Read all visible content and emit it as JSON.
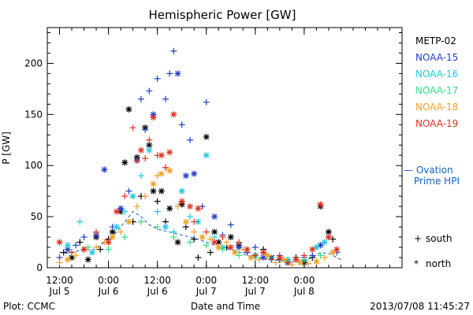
{
  "chart_data": {
    "type": "scatter",
    "title": "Hemispheric Power [GW]",
    "ylabel": "P [GW]",
    "xlabel": "Date and Time",
    "ylim": [
      0,
      235
    ],
    "xlim_hours": [
      -3,
      84
    ],
    "yticks": [
      0,
      50,
      100,
      150,
      200
    ],
    "xticks": [
      {
        "h": 0,
        "top": "12:00",
        "bottom": "Jul 5"
      },
      {
        "h": 12,
        "top": "0:00",
        "bottom": "Jul 6"
      },
      {
        "h": 24,
        "top": "12:00",
        "bottom": "Jul 6"
      },
      {
        "h": 36,
        "top": "0:00",
        "bottom": "Jul 7"
      },
      {
        "h": 48,
        "top": "12:00",
        "bottom": "Jul 7"
      },
      {
        "h": 60,
        "top": "0:00",
        "bottom": "Jul 8"
      }
    ],
    "x_unit": "hours since 2013-07-05 12:00 UT",
    "grid": false,
    "legend_position": "right",
    "series": [
      {
        "name": "METP-02",
        "color": "#000000",
        "points": [
          [
            1,
            15,
            "+"
          ],
          [
            3,
            10,
            "*"
          ],
          [
            5,
            25,
            "+"
          ],
          [
            7,
            8,
            "*"
          ],
          [
            9,
            30,
            "*"
          ],
          [
            10,
            18,
            "+"
          ],
          [
            12,
            28,
            "+"
          ],
          [
            13,
            35,
            "*"
          ],
          [
            15,
            55,
            "*"
          ],
          [
            16,
            103,
            "*"
          ],
          [
            17,
            155,
            "*"
          ],
          [
            18,
            45,
            "+"
          ],
          [
            19,
            108,
            "*"
          ],
          [
            20,
            70,
            "+"
          ],
          [
            21,
            137,
            "*"
          ],
          [
            22,
            120,
            "*"
          ],
          [
            23,
            75,
            "*"
          ],
          [
            24,
            65,
            "+"
          ],
          [
            25,
            75,
            "*"
          ],
          [
            26,
            45,
            "+"
          ],
          [
            27,
            58,
            "*"
          ],
          [
            29,
            25,
            "*"
          ],
          [
            30,
            62,
            "*"
          ],
          [
            31,
            40,
            "+"
          ],
          [
            33,
            28,
            "+"
          ],
          [
            34,
            10,
            "+"
          ],
          [
            36,
            128,
            "*"
          ],
          [
            37,
            15,
            "+"
          ],
          [
            38,
            35,
            "*"
          ],
          [
            39,
            25,
            "*"
          ],
          [
            41,
            20,
            "+"
          ],
          [
            42,
            30,
            "*"
          ],
          [
            44,
            22,
            "*"
          ],
          [
            46,
            15,
            "+"
          ],
          [
            48,
            12,
            "*"
          ],
          [
            50,
            18,
            "+"
          ],
          [
            52,
            10,
            "*"
          ],
          [
            54,
            8,
            "+"
          ],
          [
            56,
            5,
            "*"
          ],
          [
            58,
            10,
            "+"
          ],
          [
            60,
            5,
            "*"
          ],
          [
            62,
            10,
            "+"
          ],
          [
            64,
            60,
            "*"
          ],
          [
            66,
            35,
            "*"
          ],
          [
            67,
            28,
            "+"
          ]
        ]
      },
      {
        "name": "NOAA-15",
        "color": "#1f3fc4",
        "points": [
          [
            0,
            10,
            "+"
          ],
          [
            2,
            18,
            "*"
          ],
          [
            4,
            22,
            "+"
          ],
          [
            6,
            30,
            "+"
          ],
          [
            9,
            32,
            "*"
          ],
          [
            11,
            96,
            "*"
          ],
          [
            13,
            40,
            "+"
          ],
          [
            15,
            58,
            "*"
          ],
          [
            17,
            75,
            "+"
          ],
          [
            19,
            105,
            "*"
          ],
          [
            20,
            165,
            "+"
          ],
          [
            21,
            135,
            "+"
          ],
          [
            22,
            173,
            "+"
          ],
          [
            23,
            150,
            "*"
          ],
          [
            24,
            185,
            "+"
          ],
          [
            26,
            165,
            "+"
          ],
          [
            27,
            190,
            "+"
          ],
          [
            28,
            212,
            "+"
          ],
          [
            29,
            190,
            "*"
          ],
          [
            30,
            140,
            "+"
          ],
          [
            31,
            90,
            "*"
          ],
          [
            32,
            125,
            "+"
          ],
          [
            33,
            92,
            "*"
          ],
          [
            35,
            60,
            "+"
          ],
          [
            36,
            162,
            "+"
          ],
          [
            38,
            50,
            "*"
          ],
          [
            40,
            32,
            "+"
          ],
          [
            42,
            42,
            "+"
          ],
          [
            44,
            20,
            "*"
          ],
          [
            46,
            15,
            "+"
          ],
          [
            48,
            20,
            "+"
          ],
          [
            50,
            10,
            "*"
          ],
          [
            52,
            8,
            "+"
          ],
          [
            54,
            12,
            "+"
          ],
          [
            56,
            5,
            "*"
          ],
          [
            58,
            8,
            "+"
          ],
          [
            60,
            10,
            "+"
          ],
          [
            62,
            12,
            "+"
          ],
          [
            64,
            22,
            "*"
          ],
          [
            66,
            30,
            "+"
          ],
          [
            68,
            15,
            "+"
          ]
        ]
      },
      {
        "name": "NOAA-16",
        "color": "#22c8e0",
        "points": [
          [
            2,
            22,
            "*"
          ],
          [
            5,
            45,
            "+"
          ],
          [
            8,
            15,
            "*"
          ],
          [
            12,
            25,
            "+"
          ],
          [
            14,
            40,
            "*"
          ],
          [
            16,
            55,
            "+"
          ],
          [
            18,
            70,
            "*"
          ],
          [
            20,
            90,
            "+"
          ],
          [
            22,
            115,
            "*"
          ],
          [
            24,
            55,
            "+"
          ],
          [
            26,
            40,
            "*"
          ],
          [
            28,
            35,
            "+"
          ],
          [
            30,
            75,
            "*"
          ],
          [
            32,
            50,
            "+"
          ],
          [
            34,
            45,
            "*"
          ],
          [
            36,
            110,
            "*"
          ],
          [
            38,
            30,
            "+"
          ],
          [
            40,
            20,
            "*"
          ],
          [
            44,
            15,
            "+"
          ],
          [
            48,
            12,
            "*"
          ],
          [
            52,
            10,
            "+"
          ],
          [
            56,
            8,
            "*"
          ],
          [
            60,
            8,
            "+"
          ],
          [
            63,
            20,
            "*"
          ],
          [
            65,
            25,
            "*"
          ]
        ]
      },
      {
        "name": "NOAA-17",
        "color": "#33dd88",
        "points": [
          [
            3,
            15,
            "+"
          ],
          [
            7,
            20,
            "+"
          ],
          [
            12,
            18,
            "+"
          ],
          [
            16,
            30,
            "+"
          ],
          [
            20,
            45,
            "+"
          ],
          [
            24,
            40,
            "+"
          ],
          [
            28,
            30,
            "+"
          ],
          [
            32,
            25,
            "+"
          ],
          [
            36,
            22,
            "+"
          ],
          [
            40,
            18,
            "+"
          ],
          [
            44,
            12,
            "+"
          ],
          [
            48,
            10,
            "+"
          ],
          [
            52,
            8,
            "+"
          ],
          [
            56,
            6,
            "+"
          ],
          [
            60,
            8,
            "+"
          ],
          [
            64,
            12,
            "+"
          ]
        ]
      },
      {
        "name": "NOAA-18",
        "color": "#f0a020",
        "points": [
          [
            0,
            5,
            "+"
          ],
          [
            2,
            8,
            "*"
          ],
          [
            4,
            12,
            "+"
          ],
          [
            6,
            18,
            "*"
          ],
          [
            9,
            20,
            "+"
          ],
          [
            11,
            25,
            "+"
          ],
          [
            13,
            30,
            "*"
          ],
          [
            15,
            35,
            "+"
          ],
          [
            17,
            45,
            "*"
          ],
          [
            19,
            60,
            "+"
          ],
          [
            21,
            70,
            "+"
          ],
          [
            23,
            82,
            "*"
          ],
          [
            24,
            90,
            "+"
          ],
          [
            25,
            92,
            "*"
          ],
          [
            26,
            98,
            "+"
          ],
          [
            27,
            95,
            "*"
          ],
          [
            29,
            60,
            "+"
          ],
          [
            31,
            45,
            "*"
          ],
          [
            33,
            35,
            "+"
          ],
          [
            35,
            30,
            "*"
          ],
          [
            37,
            28,
            "+"
          ],
          [
            39,
            20,
            "*"
          ],
          [
            41,
            25,
            "+"
          ],
          [
            43,
            15,
            "*"
          ],
          [
            45,
            18,
            "+"
          ],
          [
            47,
            10,
            "*"
          ],
          [
            49,
            8,
            "+"
          ],
          [
            51,
            12,
            "*"
          ],
          [
            53,
            5,
            "+"
          ],
          [
            55,
            8,
            "*"
          ],
          [
            57,
            3,
            "+"
          ],
          [
            59,
            5,
            "*"
          ],
          [
            61,
            4,
            "+"
          ],
          [
            63,
            6,
            "*"
          ],
          [
            65,
            10,
            "+"
          ],
          [
            67,
            15,
            "*"
          ]
        ]
      },
      {
        "name": "NOAA-19",
        "color": "#e03020",
        "points": [
          [
            0,
            25,
            "*"
          ],
          [
            3,
            15,
            "+"
          ],
          [
            6,
            18,
            "*"
          ],
          [
            9,
            35,
            "+"
          ],
          [
            12,
            25,
            "*"
          ],
          [
            14,
            55,
            "*"
          ],
          [
            16,
            70,
            "+"
          ],
          [
            18,
            137,
            "+"
          ],
          [
            19,
            105,
            "+"
          ],
          [
            20,
            115,
            "*"
          ],
          [
            21,
            107,
            "+"
          ],
          [
            22,
            125,
            "+"
          ],
          [
            23,
            147,
            "*"
          ],
          [
            24,
            110,
            "+"
          ],
          [
            25,
            110,
            "*"
          ],
          [
            26,
            98,
            "+"
          ],
          [
            27,
            113,
            "*"
          ],
          [
            28,
            150,
            "*"
          ],
          [
            30,
            65,
            "*"
          ],
          [
            32,
            60,
            "*"
          ],
          [
            33,
            45,
            "+"
          ],
          [
            34,
            58,
            "*"
          ],
          [
            36,
            35,
            "+"
          ],
          [
            38,
            25,
            "*"
          ],
          [
            40,
            30,
            "+"
          ],
          [
            42,
            20,
            "*"
          ],
          [
            44,
            25,
            "+"
          ],
          [
            46,
            18,
            "*"
          ],
          [
            48,
            12,
            "+"
          ],
          [
            50,
            15,
            "*"
          ],
          [
            52,
            8,
            "+"
          ],
          [
            54,
            10,
            "*"
          ],
          [
            56,
            5,
            "+"
          ],
          [
            58,
            8,
            "*"
          ],
          [
            60,
            12,
            "+"
          ],
          [
            62,
            18,
            "*"
          ],
          [
            64,
            62,
            "*"
          ],
          [
            66,
            30,
            "*"
          ],
          [
            68,
            18,
            "*"
          ]
        ]
      }
    ],
    "ovation": {
      "name_line1": "— Ovation",
      "name_line2": "Prime HPI",
      "color": "#1060c8",
      "points": [
        [
          0,
          15
        ],
        [
          2,
          14
        ],
        [
          4,
          16
        ],
        [
          6,
          18
        ],
        [
          8,
          17
        ],
        [
          10,
          22
        ],
        [
          12,
          28
        ],
        [
          14,
          35
        ],
        [
          16,
          45
        ],
        [
          18,
          55
        ],
        [
          20,
          50
        ],
        [
          22,
          42
        ],
        [
          24,
          38
        ],
        [
          26,
          36
        ],
        [
          28,
          34
        ],
        [
          30,
          32
        ],
        [
          32,
          30
        ],
        [
          34,
          28
        ],
        [
          36,
          25
        ],
        [
          38,
          22
        ],
        [
          40,
          20
        ],
        [
          42,
          18
        ],
        [
          44,
          15
        ],
        [
          46,
          12
        ],
        [
          48,
          10
        ],
        [
          50,
          9
        ],
        [
          52,
          8
        ],
        [
          54,
          7
        ],
        [
          56,
          6
        ],
        [
          58,
          6
        ],
        [
          60,
          7
        ],
        [
          62,
          10
        ],
        [
          64,
          15
        ],
        [
          66,
          14
        ],
        [
          68,
          10
        ],
        [
          69,
          8
        ]
      ]
    },
    "marker_legend": [
      {
        "symbol": "+",
        "label": "south"
      },
      {
        "symbol": "*",
        "label": "north"
      }
    ]
  },
  "footer": {
    "left": "Plot: CCMC",
    "right": "2013/07/08 11:45:27"
  }
}
